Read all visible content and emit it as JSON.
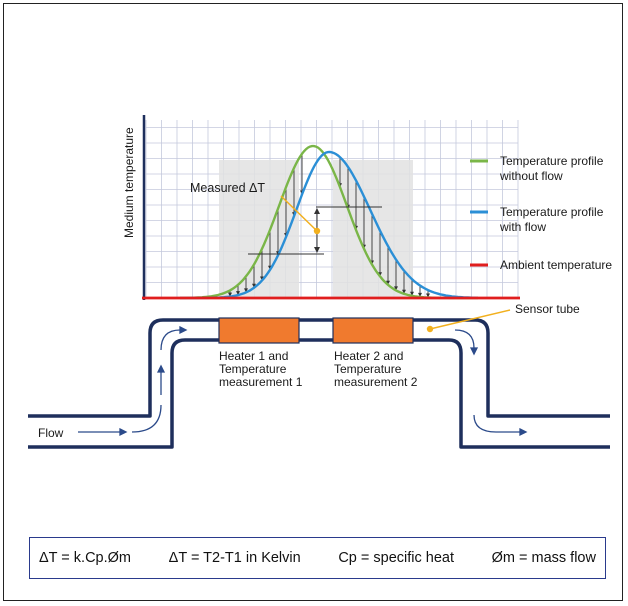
{
  "diagram": {
    "y_axis_label": "Medium temperature",
    "annotation_delta": "Measured ΔT",
    "sensor_tube_label": "Sensor tube",
    "flow_label": "Flow",
    "heater1": {
      "line1": "Heater 1 and",
      "line2": "Temperature",
      "line3": "measurement 1"
    },
    "heater2": {
      "line1": "Heater 2 and",
      "line2": "Temperature",
      "line3": "measurement 2"
    }
  },
  "legend": [
    {
      "line1": "Temperature profile",
      "line2": "without flow",
      "color": "#7ab648"
    },
    {
      "line1": "Temperature profile",
      "line2": "with flow",
      "color": "#2b8fd6"
    },
    {
      "line1": "Ambient temperature",
      "line2": "",
      "color": "#e01e1e"
    }
  ],
  "formula": [
    "ΔT = k.Cp.Øm",
    "ΔT = T2-T1 in Kelvin",
    "Cp = specific heat",
    "Øm = mass flow"
  ],
  "colors": {
    "pipe": "#1e2f5c",
    "heater": "#f07a2e",
    "grid": "#c4c9dc",
    "shading": "#e2e2e2",
    "leader": "#f2b01e",
    "formula_border": "#2a3a8c"
  }
}
